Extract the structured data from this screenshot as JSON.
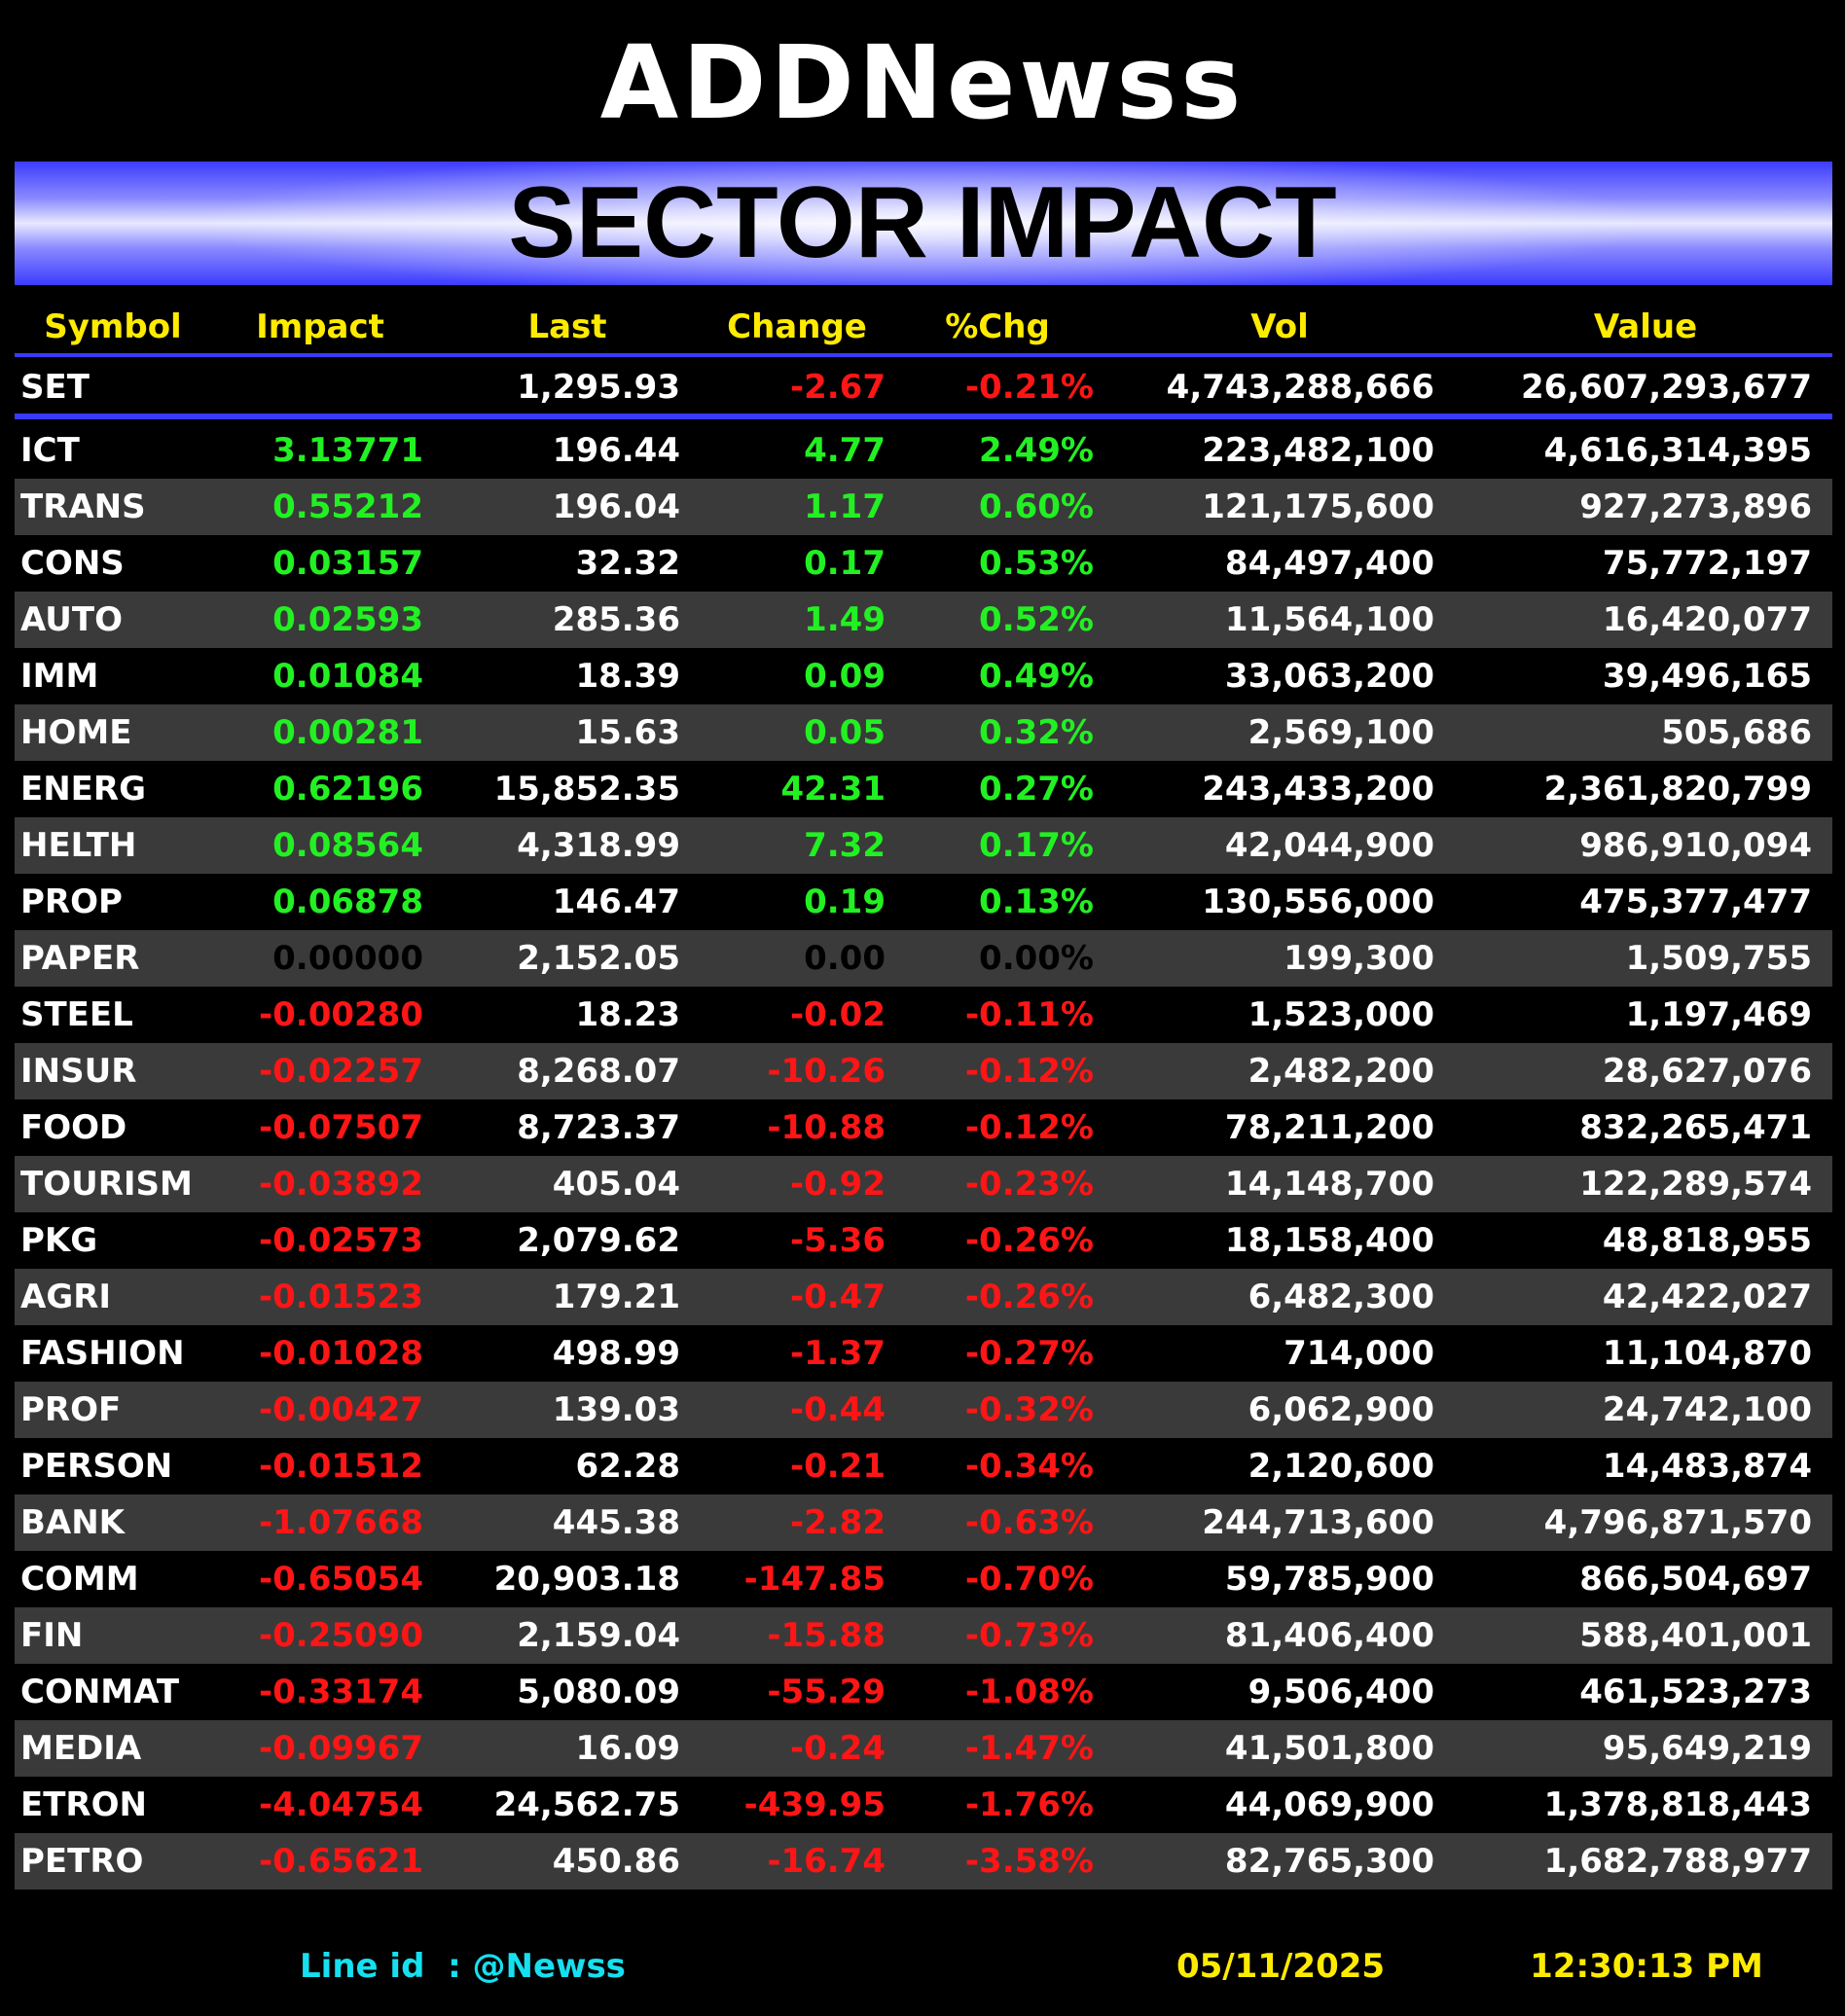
{
  "header": {
    "logo": "ADDNewss",
    "title": "SECTOR IMPACT"
  },
  "table": {
    "columns": [
      "Symbol",
      "Impact",
      "Last",
      "Change",
      "%Chg",
      "Vol",
      "Value"
    ],
    "index_row": [
      "SET",
      null,
      "1,295.93",
      "-2.67",
      "-0.21%",
      "4,743,288,666",
      "26,607,293,677"
    ],
    "rows": [
      [
        "ICT",
        "3.13771",
        "196.44",
        "4.77",
        "2.49%",
        "223,482,100",
        "4,616,314,395"
      ],
      [
        "TRANS",
        "0.55212",
        "196.04",
        "1.17",
        "0.60%",
        "121,175,600",
        "927,273,896"
      ],
      [
        "CONS",
        "0.03157",
        "32.32",
        "0.17",
        "0.53%",
        "84,497,400",
        "75,772,197"
      ],
      [
        "AUTO",
        "0.02593",
        "285.36",
        "1.49",
        "0.52%",
        "11,564,100",
        "16,420,077"
      ],
      [
        "IMM",
        "0.01084",
        "18.39",
        "0.09",
        "0.49%",
        "33,063,200",
        "39,496,165"
      ],
      [
        "HOME",
        "0.00281",
        "15.63",
        "0.05",
        "0.32%",
        "2,569,100",
        "505,686"
      ],
      [
        "ENERG",
        "0.62196",
        "15,852.35",
        "42.31",
        "0.27%",
        "243,433,200",
        "2,361,820,799"
      ],
      [
        "HELTH",
        "0.08564",
        "4,318.99",
        "7.32",
        "0.17%",
        "42,044,900",
        "986,910,094"
      ],
      [
        "PROP",
        "0.06878",
        "146.47",
        "0.19",
        "0.13%",
        "130,556,000",
        "475,377,477"
      ],
      [
        "PAPER",
        "0.00000",
        "2,152.05",
        "0.00",
        "0.00%",
        "199,300",
        "1,509,755"
      ],
      [
        "STEEL",
        "-0.00280",
        "18.23",
        "-0.02",
        "-0.11%",
        "1,523,000",
        "1,197,469"
      ],
      [
        "INSUR",
        "-0.02257",
        "8,268.07",
        "-10.26",
        "-0.12%",
        "2,482,200",
        "28,627,076"
      ],
      [
        "FOOD",
        "-0.07507",
        "8,723.37",
        "-10.88",
        "-0.12%",
        "78,211,200",
        "832,265,471"
      ],
      [
        "TOURISM",
        "-0.03892",
        "405.04",
        "-0.92",
        "-0.23%",
        "14,148,700",
        "122,289,574"
      ],
      [
        "PKG",
        "-0.02573",
        "2,079.62",
        "-5.36",
        "-0.26%",
        "18,158,400",
        "48,818,955"
      ],
      [
        "AGRI",
        "-0.01523",
        "179.21",
        "-0.47",
        "-0.26%",
        "6,482,300",
        "42,422,027"
      ],
      [
        "FASHION",
        "-0.01028",
        "498.99",
        "-1.37",
        "-0.27%",
        "714,000",
        "11,104,870"
      ],
      [
        "PROF",
        "-0.00427",
        "139.03",
        "-0.44",
        "-0.32%",
        "6,062,900",
        "24,742,100"
      ],
      [
        "PERSON",
        "-0.01512",
        "62.28",
        "-0.21",
        "-0.34%",
        "2,120,600",
        "14,483,874"
      ],
      [
        "BANK",
        "-1.07668",
        "445.38",
        "-2.82",
        "-0.63%",
        "244,713,600",
        "4,796,871,570"
      ],
      [
        "COMM",
        "-0.65054",
        "20,903.18",
        "-147.85",
        "-0.70%",
        "59,785,900",
        "866,504,697"
      ],
      [
        "FIN",
        "-0.25090",
        "2,159.04",
        "-15.88",
        "-0.73%",
        "81,406,400",
        "588,401,001"
      ],
      [
        "CONMAT",
        "-0.33174",
        "5,080.09",
        "-55.29",
        "-1.08%",
        "9,506,400",
        "461,523,273"
      ],
      [
        "MEDIA",
        "-0.09967",
        "16.09",
        "-0.24",
        "-1.47%",
        "41,501,800",
        "95,649,219"
      ],
      [
        "ETRON",
        "-4.04754",
        "24,562.75",
        "-439.95",
        "-1.76%",
        "44,069,900",
        "1,378,818,443"
      ],
      [
        "PETRO",
        "-0.65621",
        "450.86",
        "-16.74",
        "-3.58%",
        "82,765,300",
        "1,682,788,977"
      ]
    ]
  },
  "footer": {
    "line_id": "Line id  : @Newss",
    "date": "05/11/2025",
    "time": "12:30:13 PM"
  }
}
